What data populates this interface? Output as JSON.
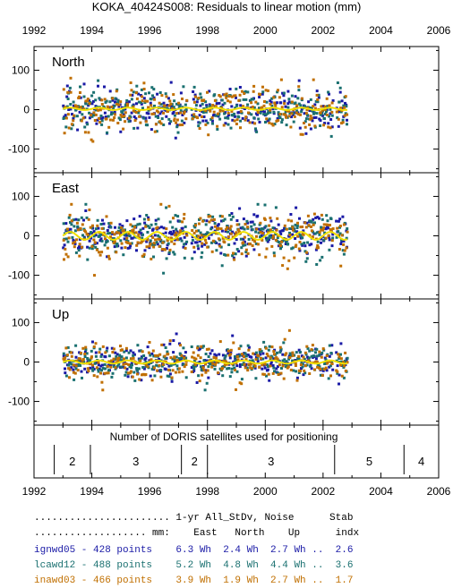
{
  "chart_data": {
    "type": "scatter",
    "title": "KOKA_40424S008: Residuals to linear motion (mm)",
    "x_ticks": [
      "1992",
      "1994",
      "1996",
      "1998",
      "2000",
      "2002",
      "2004",
      "2006"
    ],
    "xlim": [
      1992,
      2006
    ],
    "panels": [
      {
        "label": "North",
        "ylim": [
          -160,
          160
        ],
        "y_ticks": [
          "100",
          "0",
          "-100"
        ],
        "noise_sd": 28,
        "smooth": {
          "amplitude": 3,
          "period": 1.0,
          "offset": 2
        }
      },
      {
        "label": "East",
        "ylim": [
          -160,
          160
        ],
        "y_ticks": [
          "100",
          "0",
          "-100"
        ],
        "noise_sd": 30,
        "smooth": {
          "amplitude": 10,
          "period": 1.0,
          "offset": 0
        }
      },
      {
        "label": "Up",
        "ylim": [
          -160,
          160
        ],
        "y_ticks": [
          "100",
          "0",
          "-100"
        ],
        "noise_sd": 22,
        "smooth": {
          "amplitude": 4,
          "period": 1.0,
          "offset": 0
        }
      }
    ],
    "series": [
      {
        "name": "ignwd05",
        "color": "#1a1aa6",
        "points": 428
      },
      {
        "name": "lcawd12",
        "color": "#1a7070",
        "points": 488
      },
      {
        "name": "inawd03",
        "color": "#c06f00",
        "points": 466
      }
    ],
    "smooth_color": "#f0e000",
    "data_span": [
      1993.0,
      2002.85
    ],
    "data_gaps": [
      [
        1997.3,
        1997.45
      ],
      [
        2002.35,
        2002.45
      ]
    ],
    "satellites": {
      "title": "Number of DORIS satellites used for positioning",
      "segments": [
        {
          "start": 1992.7,
          "end": 1993.95,
          "count": "2"
        },
        {
          "start": 1993.95,
          "end": 1997.1,
          "count": "3"
        },
        {
          "start": 1997.1,
          "end": 1998.0,
          "count": "2"
        },
        {
          "start": 1998.0,
          "end": 2002.4,
          "count": "3"
        },
        {
          "start": 2002.4,
          "end": 2004.8,
          "count": "5"
        },
        {
          "start": 2004.8,
          "end": 2006.0,
          "count": "4"
        }
      ]
    }
  },
  "stats": {
    "header1": "....................... 1-yr All_StDv, Noise      Stab",
    "header2": "................... mm:    East   North    Up      indx",
    "rows": [
      {
        "text": "ignwd05 - 428 points    6.3 Wh  2.4 Wh  2.7 Wh ..  2.6",
        "color": "#1a1aa6"
      },
      {
        "text": "lcawd12 - 488 points    5.2 Wh  4.8 Wh  4.4 Wh ..  3.6",
        "color": "#1a7070"
      },
      {
        "text": "inawd03 - 466 points    3.9 Wh  1.9 Wh  2.7 Wh ..  1.7",
        "color": "#c06f00"
      }
    ]
  }
}
